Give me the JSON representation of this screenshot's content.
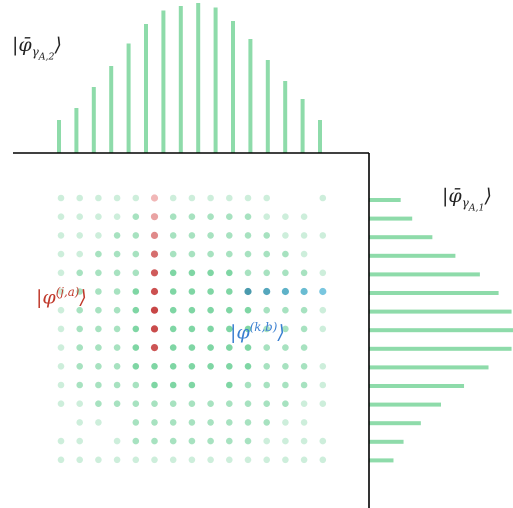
{
  "labels": {
    "top_marginal": {
      "ket_open": "|",
      "symbol": "φ̄",
      "sub_main": "γ",
      "sub_sub": "A,2",
      "ket_close": "⟩"
    },
    "right_marginal": {
      "ket_open": "|",
      "symbol": "φ̄",
      "sub_main": "γ",
      "sub_sub": "A,1",
      "ket_close": "⟩"
    },
    "column_vector": {
      "ket_open": "|",
      "symbol": "φ",
      "superscript": "(j,a)",
      "ket_close": "⟩"
    },
    "row_vector": {
      "ket_open": "|",
      "symbol": "φ",
      "superscript": "(k,b)",
      "ket_close": "⟩"
    }
  },
  "colors": {
    "grid_dot": "#cdeedb",
    "grid_dot_mid": "#a7e2c0",
    "grid_dot_strong": "#7fd6a4",
    "marginal_bar": "#8edbaa",
    "column_highlight": [
      "#f1b7b7",
      "#e9a3a3",
      "#e08a8a",
      "#d66f6f",
      "#cf5a5a",
      "#cc5050",
      "#c84646",
      "#c94b4b",
      "#cc5555"
    ],
    "row_highlight": [
      "#4a9aad",
      "#55a7bd",
      "#5eb2c8",
      "#69bcd2",
      "#79c6df"
    ],
    "axis": "#000000",
    "column_label": "#c0392b",
    "row_label": "#3a7fd0"
  },
  "top_marginal_values": [
    0.22,
    0.3,
    0.44,
    0.58,
    0.73,
    0.86,
    0.95,
    0.98,
    1.0,
    0.97,
    0.88,
    0.76,
    0.62,
    0.48,
    0.36,
    0.22
  ],
  "right_marginal_values": [
    0.22,
    0.3,
    0.44,
    0.6,
    0.77,
    0.9,
    0.99,
    1.0,
    0.99,
    0.83,
    0.66,
    0.5,
    0.36,
    0.24,
    0.17
  ]
}
